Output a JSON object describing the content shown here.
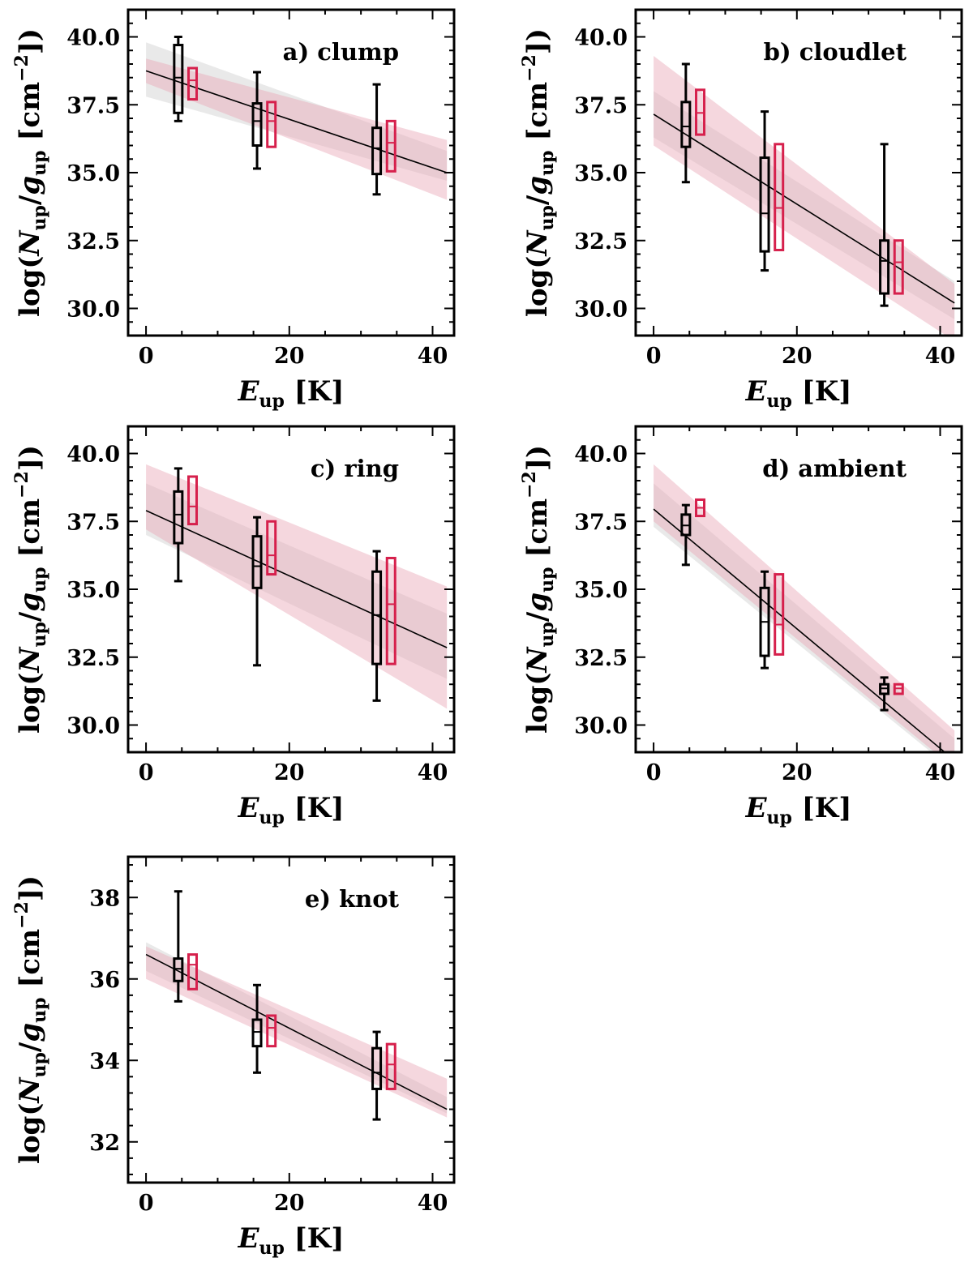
{
  "figure": {
    "xlabel": "E_up [K]",
    "xlabel_main": "E",
    "xlabel_sub": "up",
    "xlabel_unit": "[K]",
    "ylabel": "log(N_up/g_up [cm^-2])",
    "ylabel_parts": {
      "prefix": "log(",
      "N": "N",
      "N_sub": "up",
      "slash": "/",
      "g": "g",
      "g_sub": "up",
      "unit_open": " [cm",
      "unit_exp": "−2",
      "unit_close": "])"
    }
  },
  "colors": {
    "black_boxes": "#000000",
    "red_boxes": "#d6204c",
    "gray_band": "#d7d7d7",
    "pink_band": "#e9a6b6",
    "fit_line": "#000000"
  },
  "chart_data": [
    {
      "type": "box",
      "panel_label": "a) clump",
      "xlim": [
        -2.5,
        43
      ],
      "ylim": [
        29,
        41
      ],
      "xticks": [
        0,
        20,
        40
      ],
      "yticks": [
        30.0,
        32.5,
        35.0,
        37.5,
        40.0
      ],
      "ytick_labels": [
        "30.0",
        "32.5",
        "35.0",
        "37.5",
        "40.0"
      ],
      "fit_line": {
        "x": [
          0,
          42
        ],
        "y": [
          38.75,
          35.0
        ]
      },
      "gray_band": {
        "x": [
          0,
          42
        ],
        "y_low": [
          37.8,
          34.7
        ],
        "y_high": [
          39.8,
          35.8
        ]
      },
      "pink_band": {
        "x": [
          0,
          42
        ],
        "y_low": [
          38.3,
          34.0
        ],
        "y_high": [
          39.2,
          36.2
        ]
      },
      "black_boxes": [
        {
          "x": 4.5,
          "whisker_low": 36.9,
          "q1": 37.2,
          "median": 38.5,
          "q3": 39.7,
          "whisker_high": 40.0
        },
        {
          "x": 15.5,
          "whisker_low": 35.15,
          "q1": 36.0,
          "median": 36.9,
          "q3": 37.55,
          "whisker_high": 38.7
        },
        {
          "x": 32.2,
          "whisker_low": 34.2,
          "q1": 34.95,
          "median": 35.9,
          "q3": 36.65,
          "whisker_high": 38.25
        }
      ],
      "red_boxes": [
        {
          "x": 6.5,
          "q1": 37.7,
          "median": 38.4,
          "q3": 38.85
        },
        {
          "x": 17.5,
          "q1": 35.95,
          "median": 36.9,
          "q3": 37.6
        },
        {
          "x": 34.2,
          "q1": 35.05,
          "median": 36.1,
          "q3": 36.9
        }
      ]
    },
    {
      "type": "box",
      "panel_label": "b) cloudlet",
      "xlim": [
        -2.5,
        43
      ],
      "ylim": [
        29,
        41
      ],
      "xticks": [
        0,
        20,
        40
      ],
      "yticks": [
        30.0,
        32.5,
        35.0,
        37.5,
        40.0
      ],
      "ytick_labels": [
        "30.0",
        "32.5",
        "35.0",
        "37.5",
        "40.0"
      ],
      "fit_line": {
        "x": [
          0,
          42
        ],
        "y": [
          37.15,
          30.2
        ]
      },
      "gray_band": {
        "x": [
          0,
          42
        ],
        "y_low": [
          36.3,
          29.6
        ],
        "y_high": [
          38.0,
          31.0
        ]
      },
      "pink_band": {
        "x": [
          0,
          42
        ],
        "y_low": [
          36.0,
          28.8
        ],
        "y_high": [
          39.3,
          30.9
        ]
      },
      "black_boxes": [
        {
          "x": 4.5,
          "whisker_low": 34.65,
          "q1": 35.95,
          "median": 36.7,
          "q3": 37.6,
          "whisker_high": 39.0
        },
        {
          "x": 15.5,
          "whisker_low": 31.4,
          "q1": 32.1,
          "median": 33.5,
          "q3": 35.55,
          "whisker_high": 37.25
        },
        {
          "x": 32.2,
          "whisker_low": 30.1,
          "q1": 30.55,
          "median": 31.75,
          "q3": 32.5,
          "whisker_high": 36.05
        }
      ],
      "red_boxes": [
        {
          "x": 6.5,
          "q1": 36.4,
          "median": 37.2,
          "q3": 38.05
        },
        {
          "x": 17.5,
          "q1": 32.15,
          "median": 33.7,
          "q3": 36.05
        },
        {
          "x": 34.2,
          "q1": 30.55,
          "median": 31.7,
          "q3": 32.5
        }
      ]
    },
    {
      "type": "box",
      "panel_label": "c) ring",
      "xlim": [
        -2.5,
        43
      ],
      "ylim": [
        29,
        41
      ],
      "xticks": [
        0,
        20,
        40
      ],
      "yticks": [
        30.0,
        32.5,
        35.0,
        37.5,
        40.0
      ],
      "ytick_labels": [
        "30.0",
        "32.5",
        "35.0",
        "37.5",
        "40.0"
      ],
      "fit_line": {
        "x": [
          0,
          42
        ],
        "y": [
          37.9,
          32.85
        ]
      },
      "gray_band": {
        "x": [
          0,
          42
        ],
        "y_low": [
          37.0,
          31.7
        ],
        "y_high": [
          38.9,
          34.1
        ]
      },
      "pink_band": {
        "x": [
          0,
          42
        ],
        "y_low": [
          37.2,
          30.6
        ],
        "y_high": [
          39.6,
          35.1
        ]
      },
      "black_boxes": [
        {
          "x": 4.5,
          "whisker_low": 35.3,
          "q1": 36.7,
          "median": 37.75,
          "q3": 38.6,
          "whisker_high": 39.45
        },
        {
          "x": 15.5,
          "whisker_low": 32.2,
          "q1": 35.05,
          "median": 35.85,
          "q3": 36.95,
          "whisker_high": 37.65
        },
        {
          "x": 32.2,
          "whisker_low": 30.9,
          "q1": 32.25,
          "median": 34.05,
          "q3": 35.65,
          "whisker_high": 36.4
        }
      ],
      "red_boxes": [
        {
          "x": 6.5,
          "q1": 37.4,
          "median": 38.05,
          "q3": 39.15
        },
        {
          "x": 17.5,
          "q1": 35.55,
          "median": 36.25,
          "q3": 37.5
        },
        {
          "x": 34.2,
          "q1": 32.25,
          "median": 34.45,
          "q3": 36.15
        }
      ]
    },
    {
      "type": "box",
      "panel_label": "d) ambient",
      "xlim": [
        -2.5,
        43
      ],
      "ylim": [
        29,
        41
      ],
      "xticks": [
        0,
        20,
        40
      ],
      "yticks": [
        30.0,
        32.5,
        35.0,
        37.5,
        40.0
      ],
      "ytick_labels": [
        "30.0",
        "32.5",
        "35.0",
        "37.5",
        "40.0"
      ],
      "fit_line": {
        "x": [
          0,
          42
        ],
        "y": [
          37.95,
          28.7
        ]
      },
      "gray_band": {
        "x": [
          0,
          42
        ],
        "y_low": [
          37.3,
          28.3
        ],
        "y_high": [
          38.9,
          29.5
        ]
      },
      "pink_band": {
        "x": [
          0,
          42
        ],
        "y_low": [
          37.5,
          28.4
        ],
        "y_high": [
          39.6,
          29.8
        ]
      },
      "black_boxes": [
        {
          "x": 4.5,
          "whisker_low": 35.9,
          "q1": 37.0,
          "median": 37.35,
          "q3": 37.75,
          "whisker_high": 38.1
        },
        {
          "x": 15.5,
          "whisker_low": 32.1,
          "q1": 32.55,
          "median": 33.8,
          "q3": 35.05,
          "whisker_high": 35.65
        },
        {
          "x": 32.2,
          "whisker_low": 30.55,
          "q1": 31.15,
          "median": 31.35,
          "q3": 31.5,
          "whisker_high": 31.75
        }
      ],
      "red_boxes": [
        {
          "x": 6.5,
          "q1": 37.7,
          "median": 38.0,
          "q3": 38.3
        },
        {
          "x": 17.5,
          "q1": 32.6,
          "median": 33.7,
          "q3": 35.55
        },
        {
          "x": 34.2,
          "q1": 31.15,
          "median": 31.35,
          "q3": 31.5
        }
      ]
    },
    {
      "type": "box",
      "panel_label": "e) knot",
      "xlim": [
        -2.5,
        43
      ],
      "ylim": [
        31,
        39
      ],
      "xticks": [
        0,
        20,
        40
      ],
      "yticks": [
        32,
        34,
        36,
        38
      ],
      "ytick_labels": [
        "32",
        "34",
        "36",
        "38"
      ],
      "fit_line": {
        "x": [
          0,
          42
        ],
        "y": [
          36.6,
          32.8
        ]
      },
      "gray_band": {
        "x": [
          0,
          42
        ],
        "y_low": [
          36.2,
          32.7
        ],
        "y_high": [
          36.9,
          33.1
        ]
      },
      "pink_band": {
        "x": [
          0,
          42
        ],
        "y_low": [
          36.0,
          32.6
        ],
        "y_high": [
          36.8,
          33.55
        ]
      },
      "black_boxes": [
        {
          "x": 4.5,
          "whisker_low": 35.45,
          "q1": 35.95,
          "median": 36.25,
          "q3": 36.5,
          "whisker_high": 38.15
        },
        {
          "x": 15.5,
          "whisker_low": 33.7,
          "q1": 34.35,
          "median": 34.7,
          "q3": 35.0,
          "whisker_high": 35.85
        },
        {
          "x": 32.2,
          "whisker_low": 32.55,
          "q1": 33.3,
          "median": 33.7,
          "q3": 34.3,
          "whisker_high": 34.7
        }
      ],
      "red_boxes": [
        {
          "x": 6.5,
          "q1": 35.75,
          "median": 36.35,
          "q3": 36.6
        },
        {
          "x": 17.5,
          "q1": 34.35,
          "median": 34.8,
          "q3": 35.1
        },
        {
          "x": 34.2,
          "q1": 33.3,
          "median": 33.9,
          "q3": 34.4
        }
      ]
    }
  ]
}
